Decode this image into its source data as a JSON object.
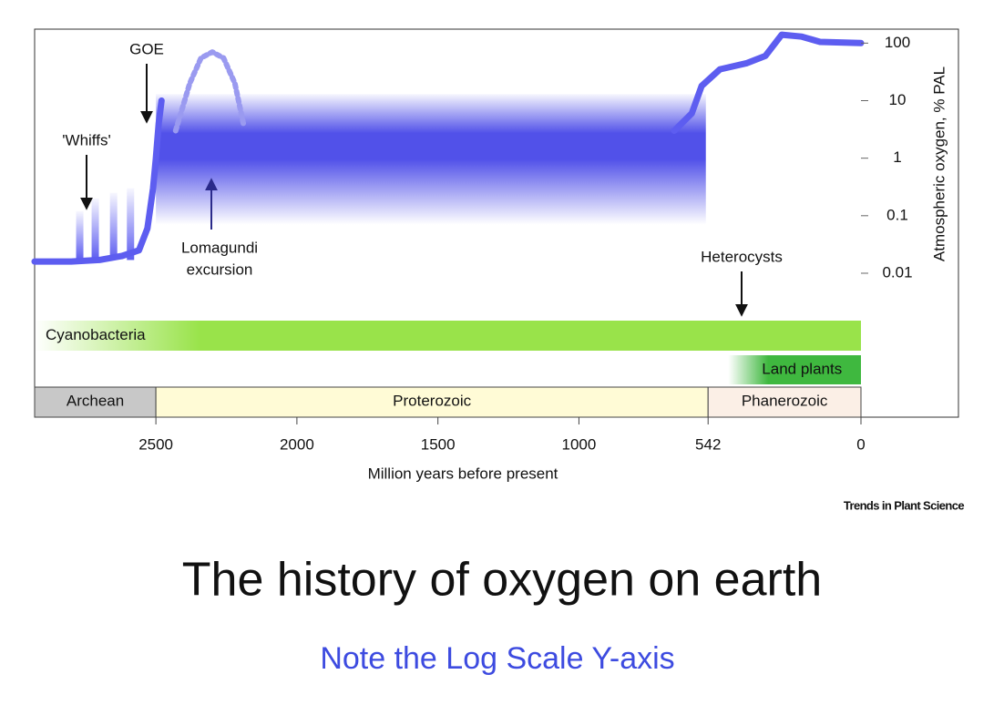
{
  "chart_data": {
    "type": "line",
    "title": "The history of oxygen on earth",
    "subtitle": "Note the Log Scale Y-axis",
    "source": "Trends in Plant Science",
    "x_label": "Million years before present",
    "y_label": "Atmospheric oxygen, % PAL",
    "log_y": true,
    "y_axis_side": "right",
    "xlim": [
      2930,
      0
    ],
    "ylim": [
      0.003,
      175
    ],
    "xticks": [
      2500,
      2000,
      1500,
      1000,
      542,
      0
    ],
    "yticks": [
      100,
      10,
      1,
      0.1,
      0.01
    ],
    "series": [
      {
        "color": "#5d5df0",
        "line_style": "solid",
        "x": [
          2930,
          2800,
          2700,
          2620,
          2560,
          2530,
          2510,
          2500,
          2490,
          2480,
          1600,
          662,
          600,
          565,
          500,
          404,
          339,
          281,
          210,
          145,
          0
        ],
        "values": [
          0.016,
          0.016,
          0.017,
          0.02,
          0.025,
          0.06,
          0.3,
          1,
          4,
          10,
          null,
          3,
          6,
          18,
          35,
          45,
          60,
          140,
          130,
          105,
          100
        ]
      },
      {
        "color": "#9a9af0",
        "line_style": "dashed",
        "x": [
          2430,
          2380,
          2340,
          2300,
          2260,
          2220,
          2190
        ],
        "values": [
          3,
          20,
          55,
          70,
          55,
          20,
          4
        ]
      }
    ],
    "band": {
      "color": "#4848e8",
      "x": [
        2500,
        550
      ],
      "values": [
        0.07,
        13
      ]
    },
    "whiffs": {
      "color": "#5d5df0",
      "base": 0.017,
      "x": [
        2770,
        2715,
        2650,
        2590
      ],
      "values": [
        0.12,
        0.2,
        0.25,
        0.3
      ]
    },
    "ranges": [
      {
        "label": "Cyanobacteria",
        "start": 2930,
        "end": 0,
        "color": "#99e34a"
      },
      {
        "label": "Land plants",
        "start": 470,
        "end": 0,
        "color": "#3fb83f"
      }
    ],
    "eons": [
      {
        "label": "Archean",
        "start": 2930,
        "end": 2500,
        "color": "#c8c8c8"
      },
      {
        "label": "Proterozoic",
        "start": 2500,
        "end": 542,
        "color": "#fffbd6"
      },
      {
        "label": "Phanerozoic",
        "start": 542,
        "end": 0,
        "color": "#fbefe6"
      }
    ],
    "annotations": {
      "goe": "GOE",
      "whiffs": "'Whiffs'",
      "lomagundi": [
        "Lomagundi",
        "excursion"
      ],
      "heterocysts": "Heterocysts"
    }
  }
}
